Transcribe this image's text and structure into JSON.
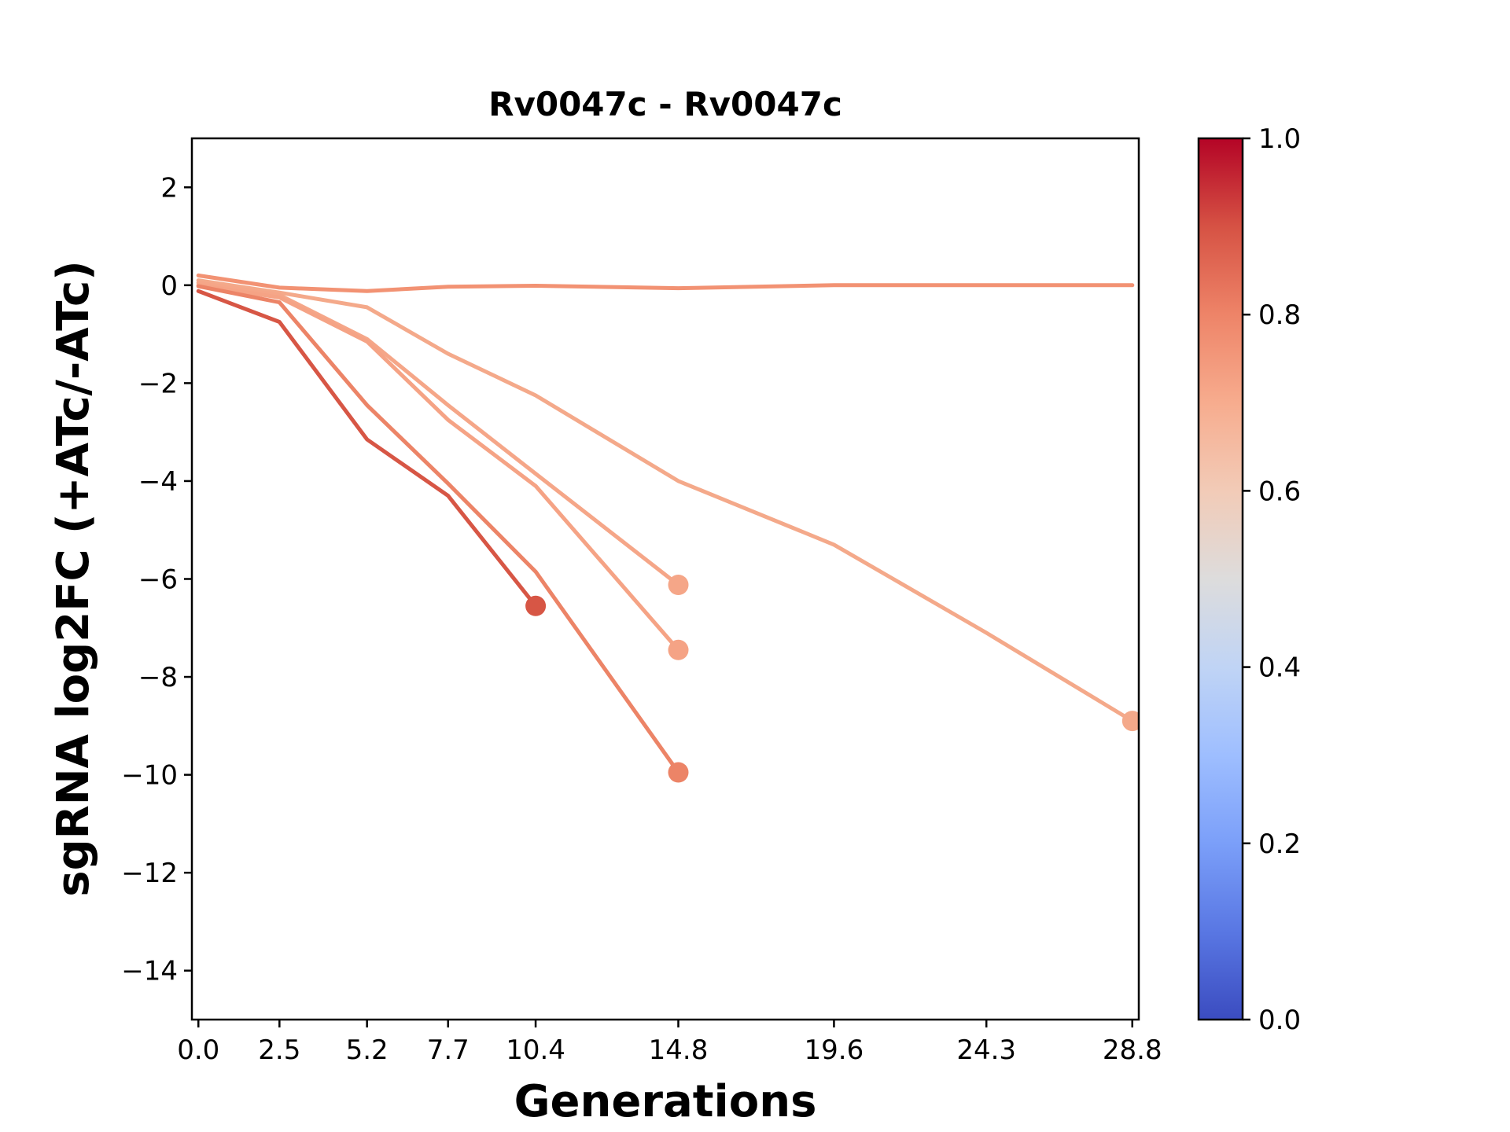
{
  "chart_data": {
    "type": "line",
    "title": "Rv0047c - Rv0047c",
    "xlabel": "Generations",
    "ylabel": "sgRNA log2FC (+ATc/-ATc)",
    "xlim": [
      -0.2,
      29.0
    ],
    "ylim": [
      -15,
      3
    ],
    "x_ticks": [
      0.0,
      2.5,
      5.2,
      7.7,
      10.4,
      14.8,
      19.6,
      24.3,
      28.8
    ],
    "x_tick_labels": [
      "0.0",
      "2.5",
      "5.2",
      "7.7",
      "10.4",
      "14.8",
      "19.6",
      "24.3",
      "28.8"
    ],
    "y_ticks": [
      2,
      0,
      -2,
      -4,
      -6,
      -8,
      -10,
      -12,
      -14
    ],
    "y_tick_labels": [
      "2",
      "0",
      "−2",
      "−4",
      "−6",
      "−8",
      "−10",
      "−12",
      "−14"
    ],
    "grid": false,
    "colorbar": {
      "colormap": "coolwarm",
      "range": [
        0.0,
        1.0
      ],
      "ticks": [
        0.0,
        0.2,
        0.4,
        0.6,
        0.8,
        1.0
      ],
      "tick_labels": [
        "0.0",
        "0.2",
        "0.4",
        "0.6",
        "0.8",
        "1.0"
      ]
    },
    "series": [
      {
        "color": "#f29273",
        "x": [
          0.0,
          2.5,
          5.2,
          7.7,
          10.4,
          14.8,
          19.6,
          24.3,
          28.8
        ],
        "y": [
          0.2,
          -0.05,
          -0.12,
          -0.03,
          -0.01,
          -0.06,
          0.0,
          0.0,
          0.0
        ],
        "end_marker": false
      },
      {
        "color": "#f4a98a",
        "x": [
          0.0,
          2.5,
          5.2,
          7.7,
          10.4,
          14.8,
          19.6,
          24.3,
          28.8
        ],
        "y": [
          0.1,
          -0.15,
          -0.45,
          -1.4,
          -2.25,
          -4.0,
          -5.3,
          -7.1,
          -8.9
        ],
        "end_marker": true
      },
      {
        "color": "#f5a688",
        "x": [
          0.0,
          2.5,
          5.2,
          7.7,
          10.4,
          14.8
        ],
        "y": [
          0.05,
          -0.2,
          -1.1,
          -2.45,
          -3.85,
          -6.12
        ],
        "end_marker": true
      },
      {
        "color": "#f5a385",
        "x": [
          0.0,
          2.5,
          5.2,
          7.7,
          10.4,
          14.8
        ],
        "y": [
          0.0,
          -0.25,
          -1.15,
          -2.75,
          -4.1,
          -7.45
        ],
        "end_marker": true
      },
      {
        "color": "#ec8467",
        "x": [
          0.0,
          2.5,
          5.2,
          7.7,
          10.4,
          14.8
        ],
        "y": [
          -0.02,
          -0.35,
          -2.45,
          -4.05,
          -5.85,
          -9.95
        ],
        "end_marker": true
      },
      {
        "color": "#d75645",
        "x": [
          0.0,
          2.5,
          5.2,
          7.7,
          10.4
        ],
        "y": [
          -0.12,
          -0.75,
          -3.15,
          -4.3,
          -6.55
        ],
        "end_marker": true
      }
    ]
  }
}
